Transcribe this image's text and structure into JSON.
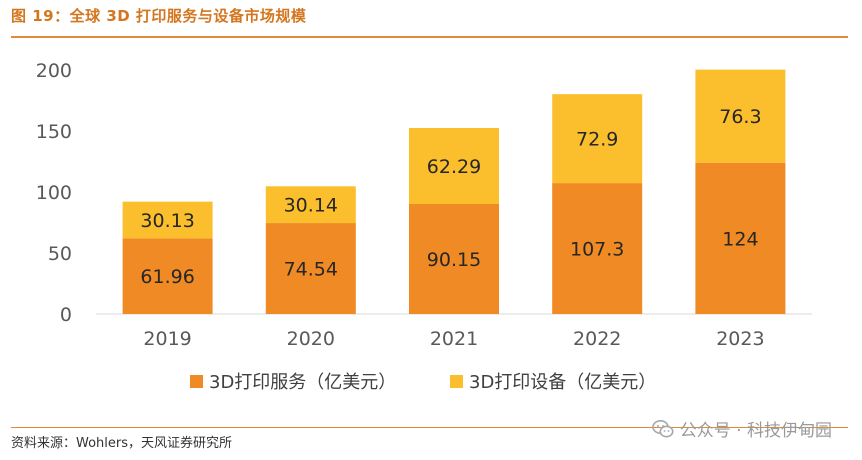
{
  "figure": {
    "title": "图 19：全球 3D 打印服务与设备市场规模",
    "source": "资料来源：Wohlers，天风证券研究所",
    "watermark": "公众号 · 科技伊甸园"
  },
  "colors": {
    "services": "#f08a24",
    "equipment": "#fbbf2e",
    "accent": "#d4761f",
    "axis_text": "#595959"
  },
  "chart_data": {
    "type": "bar",
    "stacked": true,
    "categories": [
      "2019",
      "2020",
      "2021",
      "2022",
      "2023"
    ],
    "series": [
      {
        "name": "3D打印服务（亿美元）",
        "values": [
          61.96,
          74.54,
          90.15,
          107.3,
          124
        ],
        "labels": [
          "61.96",
          "74.54",
          "90.15",
          "107.3",
          "124"
        ]
      },
      {
        "name": "3D打印设备（亿美元）",
        "values": [
          30.13,
          30.14,
          62.29,
          72.9,
          76.3
        ],
        "labels": [
          "30.13",
          "30.14",
          "62.29",
          "72.9",
          "76.3"
        ]
      }
    ],
    "ylim": [
      0,
      200
    ],
    "yticks": [
      "0",
      "50",
      "100",
      "150",
      "200"
    ],
    "grid": false,
    "legend": "bottom"
  }
}
